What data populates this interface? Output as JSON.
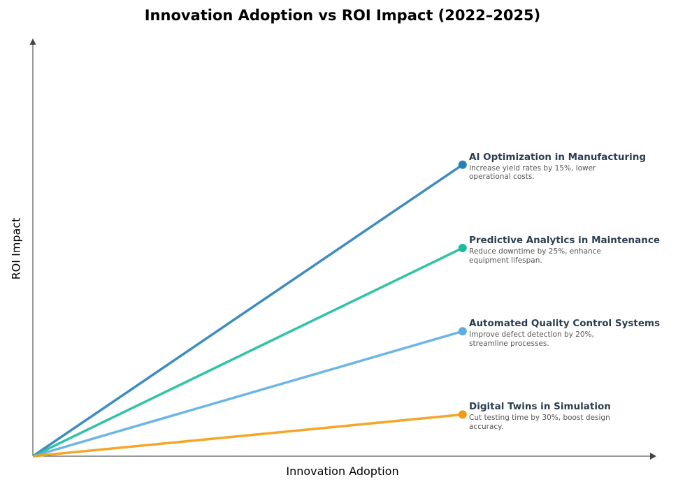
{
  "chart_data": {
    "type": "line",
    "title": "Innovation Adoption vs ROI Impact (2022–2025)",
    "xlabel": "Innovation Adoption",
    "ylabel": "ROI Impact",
    "xlim": [
      0,
      1
    ],
    "ylim": [
      0,
      1
    ],
    "grid": false,
    "ticks": false,
    "series": [
      {
        "name": "AI Optimization in Manufacturing",
        "description": "Increase yield rates by 15%, lower operational costs.",
        "color": "#2980b9",
        "x": [
          0,
          0.69
        ],
        "y": [
          0,
          0.7
        ]
      },
      {
        "name": "Predictive Analytics in Maintenance",
        "description": "Reduce downtime by 25%, enhance equipment lifespan.",
        "color": "#1abc9c",
        "x": [
          0,
          0.69
        ],
        "y": [
          0,
          0.5
        ]
      },
      {
        "name": "Automated Quality Control Systems",
        "description": "Improve defect detection by 20%, streamline processes.",
        "color": "#5dade2",
        "x": [
          0,
          0.69
        ],
        "y": [
          0,
          0.3
        ]
      },
      {
        "name": "Digital Twins in Simulation",
        "description": "Cut testing time by 30%, boost design accuracy.",
        "color": "#f39c12",
        "x": [
          0,
          0.69
        ],
        "y": [
          0,
          0.1
        ]
      }
    ]
  }
}
